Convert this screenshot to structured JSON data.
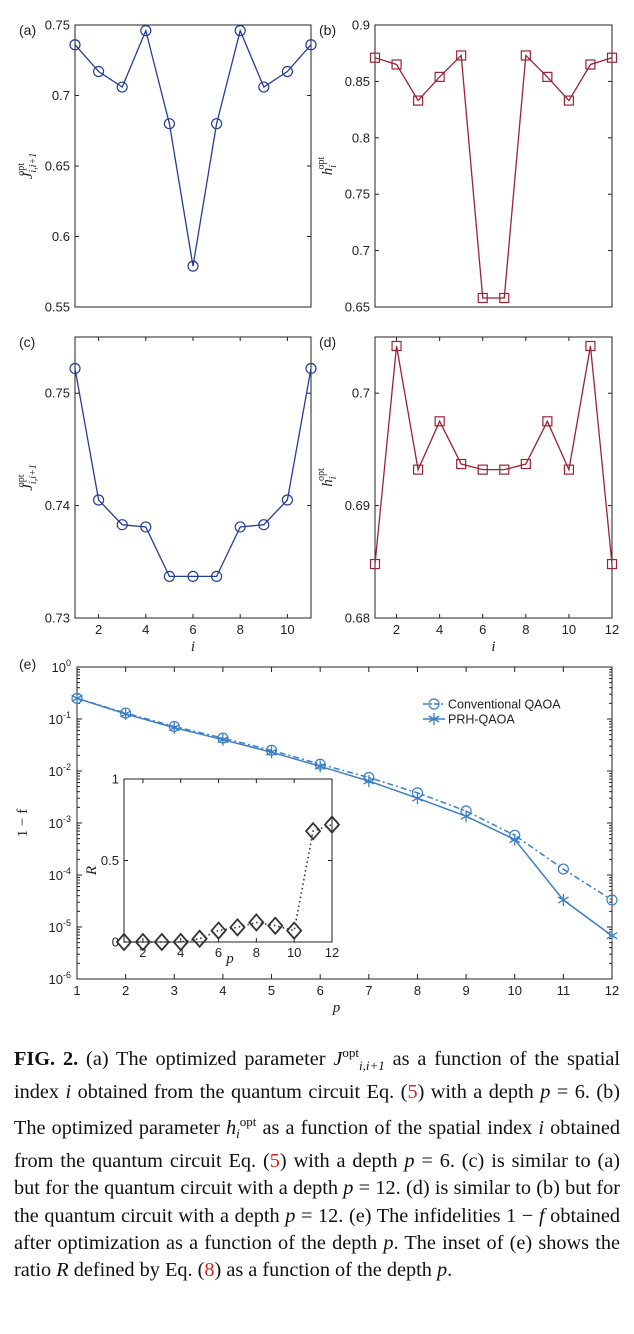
{
  "colors": {
    "blue": "#233d96",
    "red": "#9b2335",
    "plot_e": "#3a7ec5",
    "inset": "#333333",
    "ref": "#d7261e"
  },
  "chart_data": [
    {
      "panel": "(a)",
      "type": "line",
      "marker": "circle",
      "ylabel": "J_{i,i+1}^{opt}",
      "ylabel_main": "J",
      "ylabel_sub": "i,i+1",
      "ylabel_sup": "opt",
      "x": [
        1,
        2,
        3,
        4,
        5,
        6,
        7,
        8,
        9,
        10,
        11
      ],
      "values": [
        0.736,
        0.717,
        0.706,
        0.746,
        0.68,
        0.579,
        0.68,
        0.746,
        0.706,
        0.717,
        0.736
      ],
      "xlim": [
        1,
        11
      ],
      "ylim": [
        0.55,
        0.75
      ],
      "xticks": [],
      "yticks": [
        "0.55",
        "0.6",
        "0.65",
        "0.7",
        "0.75"
      ],
      "ytick_values": [
        0.55,
        0.6,
        0.65,
        0.7,
        0.75
      ]
    },
    {
      "panel": "(b)",
      "type": "line",
      "marker": "square",
      "ylabel": "h_i^{opt}",
      "ylabel_main": "h",
      "ylabel_sub": "i",
      "ylabel_sup": "opt",
      "x": [
        1,
        2,
        3,
        4,
        5,
        6,
        7,
        8,
        9,
        10,
        11,
        12
      ],
      "values": [
        0.871,
        0.865,
        0.833,
        0.854,
        0.873,
        0.658,
        0.658,
        0.873,
        0.854,
        0.833,
        0.865,
        0.871
      ],
      "xlim": [
        1,
        12
      ],
      "ylim": [
        0.65,
        0.9
      ],
      "xticks": [],
      "yticks": [
        "0.65",
        "0.7",
        "0.75",
        "0.8",
        "0.85",
        "0.9"
      ],
      "ytick_values": [
        0.65,
        0.7,
        0.75,
        0.8,
        0.85,
        0.9
      ]
    },
    {
      "panel": "(c)",
      "type": "line",
      "marker": "circle",
      "ylabel": "J_{i,i+1}^{opt}",
      "xlabel": "i",
      "ylabel_main": "J",
      "ylabel_sub": "i,i+1",
      "ylabel_sup": "opt",
      "x": [
        1,
        2,
        3,
        4,
        5,
        6,
        7,
        8,
        9,
        10,
        11
      ],
      "values": [
        0.7522,
        0.7405,
        0.7383,
        0.7381,
        0.7337,
        0.7337,
        0.7337,
        0.7381,
        0.7383,
        0.7405,
        0.7522
      ],
      "xlim": [
        1,
        11
      ],
      "ylim": [
        0.73,
        0.755
      ],
      "xticks": [
        "2",
        "4",
        "6",
        "8",
        "10"
      ],
      "xtick_values": [
        2,
        4,
        6,
        8,
        10
      ],
      "yticks": [
        "0.73",
        "0.74",
        "0.75"
      ],
      "ytick_values": [
        0.73,
        0.74,
        0.75
      ]
    },
    {
      "panel": "(d)",
      "type": "line",
      "marker": "square",
      "ylabel": "h_i^{opt}",
      "xlabel": "i",
      "ylabel_main": "h",
      "ylabel_sub": "i",
      "ylabel_sup": "opt",
      "x": [
        1,
        2,
        3,
        4,
        5,
        6,
        7,
        8,
        9,
        10,
        11,
        12
      ],
      "values": [
        0.6848,
        0.7042,
        0.6932,
        0.6975,
        0.6937,
        0.6932,
        0.6932,
        0.6937,
        0.6975,
        0.6932,
        0.7042,
        0.6848
      ],
      "xlim": [
        1,
        12
      ],
      "ylim": [
        0.68,
        0.705
      ],
      "xticks": [
        "2",
        "4",
        "6",
        "8",
        "10",
        "12"
      ],
      "xtick_values": [
        2,
        4,
        6,
        8,
        10,
        12
      ],
      "yticks": [
        "0.68",
        "0.69",
        "0.7"
      ],
      "ytick_values": [
        0.68,
        0.69,
        0.7
      ]
    },
    {
      "panel": "(e)",
      "type": "line",
      "yscale": "log",
      "xlabel": "p",
      "ylabel": "1 − f",
      "x": [
        1,
        2,
        3,
        4,
        5,
        6,
        7,
        8,
        9,
        10,
        11,
        12
      ],
      "xlim": [
        1,
        12
      ],
      "ylim": [
        1e-06,
        1
      ],
      "xticks": [
        "1",
        "2",
        "3",
        "4",
        "5",
        "6",
        "7",
        "8",
        "9",
        "10",
        "11",
        "12"
      ],
      "xtick_values": [
        1,
        2,
        3,
        4,
        5,
        6,
        7,
        8,
        9,
        10,
        11,
        12
      ],
      "ytick_exps": [
        "-6",
        "-5",
        "-4",
        "-3",
        "-2",
        "-1",
        "0"
      ],
      "legend_position": "top-right",
      "series": [
        {
          "name": "Conventional QAOA",
          "marker": "circle",
          "dash": true,
          "values": [
            0.25,
            0.13,
            0.072,
            0.043,
            0.025,
            0.0135,
            0.0075,
            0.0038,
            0.0017,
            0.00058,
            0.00013,
            3.3e-05
          ]
        },
        {
          "name": "PRH-QAOA",
          "marker": "star",
          "dash": false,
          "values": [
            0.25,
            0.125,
            0.068,
            0.04,
            0.023,
            0.0123,
            0.0064,
            0.003,
            0.00135,
            0.00048,
            3.3e-05,
            6.8e-06
          ]
        }
      ]
    },
    {
      "panel": "(e) inset",
      "type": "line",
      "marker": "diamond",
      "xlabel": "p",
      "ylabel": "R",
      "x": [
        1,
        2,
        3,
        4,
        5,
        6,
        7,
        8,
        9,
        10,
        11,
        12
      ],
      "values": [
        0.0,
        0.0,
        0.0,
        0.0,
        0.02,
        0.07,
        0.09,
        0.12,
        0.1,
        0.07,
        0.68,
        0.72
      ],
      "xlim": [
        1,
        12
      ],
      "ylim": [
        0,
        1
      ],
      "xticks": [
        "2",
        "4",
        "6",
        "8",
        "10",
        "12"
      ],
      "xtick_values": [
        2,
        4,
        6,
        8,
        10,
        12
      ],
      "yticks": [
        "0",
        "0.5",
        "1"
      ],
      "ytick_values": [
        0,
        0.5,
        1
      ]
    }
  ],
  "caption": {
    "label": "FIG. 2.",
    "a1": " (a) The optimized parameter ",
    "J": "J",
    "J_sup": "opt",
    "J_sub": "i,i+1",
    "a2": " as a function of the spatial index ",
    "i1": "i",
    "a3": " obtained from the quantum circuit Eq. (",
    "ref1": "5",
    "a4": ") with a depth ",
    "p1": "p",
    "a5": " = 6. (b) The optimized parameter ",
    "h": "h",
    "h_sub": "i",
    "h_sup": "opt",
    "b1": " as a function of the spatial index ",
    "i2": "i",
    "b2": " obtained from the quantum circuit Eq. (",
    "ref2": "5",
    "b3": ") with a depth ",
    "p2": "p",
    "b4": " = 6. (c) is similar to (a) but for the quantum circuit with a depth ",
    "p3": "p",
    "b5": " = 12. (d) is similar to (b) but for the quantum circuit with a depth ",
    "p4": "p",
    "b6": " = 12. (e) The infidelities 1 − ",
    "f": "f",
    "b7": " obtained after optimization as a function of the depth ",
    "p5": "p",
    "b8": ". The inset of (e) shows the ratio ",
    "R": "R",
    "b9": " defined by Eq. (",
    "ref3": "8",
    "b10": ") as a function of the depth ",
    "p6": "p",
    "b11": "."
  }
}
